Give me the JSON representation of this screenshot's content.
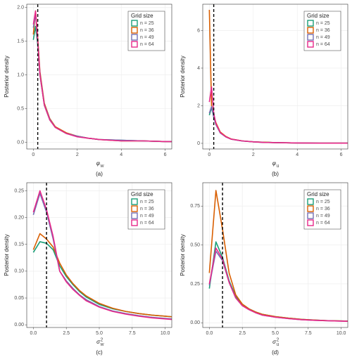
{
  "chart_data": [
    {
      "type": "line",
      "caption": "(a)",
      "x_label": "φ",
      "x_label_sub": "w",
      "y_label": "Posterior density",
      "legend_title": "Grid size",
      "legend_position": "top-right",
      "grid": true,
      "reference_line": 0.2,
      "xlim": [
        -0.3,
        6.3
      ],
      "ylim": [
        -0.1,
        2.05
      ],
      "xticks": [
        0,
        2,
        4,
        6
      ],
      "yticks": [
        {
          "value": 0,
          "label": "0.0"
        },
        {
          "value": 0.5,
          "label": "0.5"
        },
        {
          "value": 1,
          "label": "1.0"
        },
        {
          "value": 1.5,
          "label": "1.5"
        },
        {
          "value": 2,
          "label": "2.0"
        }
      ],
      "x": [
        0,
        0.1,
        0.2,
        0.3,
        0.5,
        0.75,
        1,
        1.5,
        2,
        2.5,
        3,
        4,
        5,
        6,
        6.3
      ],
      "series": [
        {
          "name": "n = 25",
          "color": "#1b9e77",
          "values": [
            1.52,
            1.72,
            1.45,
            1.0,
            0.55,
            0.33,
            0.22,
            0.13,
            0.09,
            0.06,
            0.04,
            0.03,
            0.02,
            0.01,
            0.01
          ]
        },
        {
          "name": "n = 36",
          "color": "#d95f02",
          "values": [
            1.6,
            1.95,
            1.55,
            1.05,
            0.58,
            0.35,
            0.23,
            0.14,
            0.09,
            0.06,
            0.04,
            0.02,
            0.02,
            0.01,
            0.01
          ]
        },
        {
          "name": "n = 49",
          "color": "#7570b3",
          "values": [
            1.7,
            1.9,
            1.5,
            1.02,
            0.56,
            0.34,
            0.22,
            0.13,
            0.09,
            0.06,
            0.04,
            0.03,
            0.02,
            0.01,
            0.01
          ]
        },
        {
          "name": "n = 64",
          "color": "#e7298a",
          "values": [
            1.75,
            1.95,
            1.5,
            1.0,
            0.55,
            0.33,
            0.22,
            0.13,
            0.08,
            0.06,
            0.04,
            0.02,
            0.02,
            0.01,
            0.01
          ]
        }
      ]
    },
    {
      "type": "line",
      "caption": "(b)",
      "x_label": "φ",
      "x_label_sub": "u",
      "y_label": "Posterior density",
      "legend_title": "Grid size",
      "legend_position": "top-right",
      "grid": true,
      "reference_line": 0.2,
      "xlim": [
        -0.3,
        6.3
      ],
      "ylim": [
        -0.3,
        7.4
      ],
      "xticks": [
        0,
        2,
        4,
        6
      ],
      "yticks": [
        0,
        2,
        4,
        6
      ],
      "x": [
        0,
        0.1,
        0.2,
        0.3,
        0.5,
        0.75,
        1,
        1.5,
        2,
        2.5,
        3,
        4,
        5,
        6,
        6.3
      ],
      "series": [
        {
          "name": "n = 25",
          "color": "#1b9e77",
          "values": [
            1.5,
            1.9,
            1.4,
            1.0,
            0.55,
            0.35,
            0.22,
            0.13,
            0.08,
            0.06,
            0.04,
            0.02,
            0.01,
            0.01,
            0.01
          ]
        },
        {
          "name": "n = 36",
          "color": "#d95f02",
          "values": [
            7.1,
            2.0,
            1.45,
            1.1,
            0.6,
            0.37,
            0.23,
            0.13,
            0.08,
            0.06,
            0.04,
            0.02,
            0.01,
            0.01,
            0.01
          ]
        },
        {
          "name": "n = 49",
          "color": "#7570b3",
          "values": [
            1.6,
            1.95,
            1.4,
            1.0,
            0.55,
            0.34,
            0.22,
            0.12,
            0.08,
            0.05,
            0.04,
            0.02,
            0.01,
            0.01,
            0.01
          ]
        },
        {
          "name": "n = 64",
          "color": "#e7298a",
          "values": [
            2.2,
            3.0,
            1.6,
            1.05,
            0.57,
            0.35,
            0.22,
            0.13,
            0.08,
            0.05,
            0.04,
            0.02,
            0.01,
            0.01,
            0.01
          ]
        }
      ]
    },
    {
      "type": "line",
      "caption": "(c)",
      "x_label": "σ",
      "x_label_sup": "2",
      "x_label_sub": "w",
      "y_label": "Posterior density",
      "legend_title": "Grid size",
      "legend_position": "top-right",
      "grid": true,
      "reference_line": 1,
      "xlim": [
        -0.5,
        10.5
      ],
      "ylim": [
        -0.005,
        0.265
      ],
      "xticks": [
        {
          "value": 0,
          "label": "0.0"
        },
        {
          "value": 2.5,
          "label": "2.5"
        },
        {
          "value": 5,
          "label": "5.0"
        },
        {
          "value": 7.5,
          "label": "7.5"
        },
        {
          "value": 10,
          "label": "10.0"
        }
      ],
      "yticks": [
        {
          "value": 0,
          "label": "0.00"
        },
        {
          "value": 0.05,
          "label": "0.05"
        },
        {
          "value": 0.1,
          "label": "0.10"
        },
        {
          "value": 0.15,
          "label": "0.15"
        },
        {
          "value": 0.2,
          "label": "0.20"
        },
        {
          "value": 0.25,
          "label": "0.25"
        }
      ],
      "x": [
        0,
        0.5,
        1,
        1.5,
        2,
        2.5,
        3,
        3.5,
        4,
        5,
        6,
        7,
        8,
        9,
        10,
        10.5
      ],
      "series": [
        {
          "name": "n = 25",
          "color": "#1b9e77",
          "values": [
            0.135,
            0.155,
            0.152,
            0.14,
            0.11,
            0.09,
            0.075,
            0.062,
            0.052,
            0.038,
            0.03,
            0.025,
            0.021,
            0.018,
            0.016,
            0.015
          ]
        },
        {
          "name": "n = 36",
          "color": "#d95f02",
          "values": [
            0.14,
            0.17,
            0.16,
            0.145,
            0.115,
            0.093,
            0.077,
            0.064,
            0.054,
            0.04,
            0.031,
            0.025,
            0.021,
            0.018,
            0.016,
            0.015
          ]
        },
        {
          "name": "n = 49",
          "color": "#7570b3",
          "values": [
            0.205,
            0.245,
            0.21,
            0.16,
            0.1,
            0.082,
            0.068,
            0.056,
            0.047,
            0.034,
            0.026,
            0.021,
            0.017,
            0.014,
            0.012,
            0.011
          ]
        },
        {
          "name": "n = 64",
          "color": "#e7298a",
          "values": [
            0.21,
            0.25,
            0.215,
            0.165,
            0.1,
            0.08,
            0.066,
            0.055,
            0.045,
            0.033,
            0.025,
            0.02,
            0.016,
            0.013,
            0.011,
            0.01
          ]
        }
      ]
    },
    {
      "type": "line",
      "caption": "(d)",
      "x_label": "σ",
      "x_label_sup": "2",
      "x_label_sub": "u",
      "y_label": "Posterior density",
      "legend_title": "Grid size",
      "legend_position": "top-right",
      "grid": true,
      "reference_line": 1,
      "xlim": [
        -0.5,
        10.5
      ],
      "ylim": [
        -0.03,
        0.9
      ],
      "xticks": [
        {
          "value": 0,
          "label": "0.0"
        },
        {
          "value": 2.5,
          "label": "2.5"
        },
        {
          "value": 5,
          "label": "5.0"
        },
        {
          "value": 7.5,
          "label": "7.5"
        },
        {
          "value": 10,
          "label": "10.0"
        }
      ],
      "yticks": [
        {
          "value": 0,
          "label": "0.00"
        },
        {
          "value": 0.25,
          "label": "0.25"
        },
        {
          "value": 0.5,
          "label": "0.50"
        },
        {
          "value": 0.75,
          "label": "0.75"
        }
      ],
      "x": [
        0,
        0.5,
        1,
        1.5,
        2,
        2.5,
        3,
        3.5,
        4,
        5,
        6,
        7,
        8,
        9,
        10,
        10.5
      ],
      "series": [
        {
          "name": "n = 25",
          "color": "#1b9e77",
          "values": [
            0.22,
            0.52,
            0.42,
            0.27,
            0.17,
            0.12,
            0.09,
            0.07,
            0.055,
            0.04,
            0.03,
            0.022,
            0.018,
            0.014,
            0.012,
            0.011
          ]
        },
        {
          "name": "n = 36",
          "color": "#d95f02",
          "values": [
            0.32,
            0.85,
            0.6,
            0.32,
            0.18,
            0.12,
            0.09,
            0.07,
            0.055,
            0.04,
            0.03,
            0.022,
            0.018,
            0.014,
            0.012,
            0.011
          ]
        },
        {
          "name": "n = 49",
          "color": "#7570b3",
          "values": [
            0.24,
            0.46,
            0.4,
            0.26,
            0.16,
            0.11,
            0.085,
            0.065,
            0.05,
            0.036,
            0.027,
            0.02,
            0.016,
            0.013,
            0.011,
            0.01
          ]
        },
        {
          "name": "n = 64",
          "color": "#e7298a",
          "values": [
            0.25,
            0.48,
            0.41,
            0.26,
            0.16,
            0.11,
            0.085,
            0.065,
            0.05,
            0.036,
            0.027,
            0.02,
            0.016,
            0.013,
            0.011,
            0.01
          ]
        }
      ]
    }
  ]
}
